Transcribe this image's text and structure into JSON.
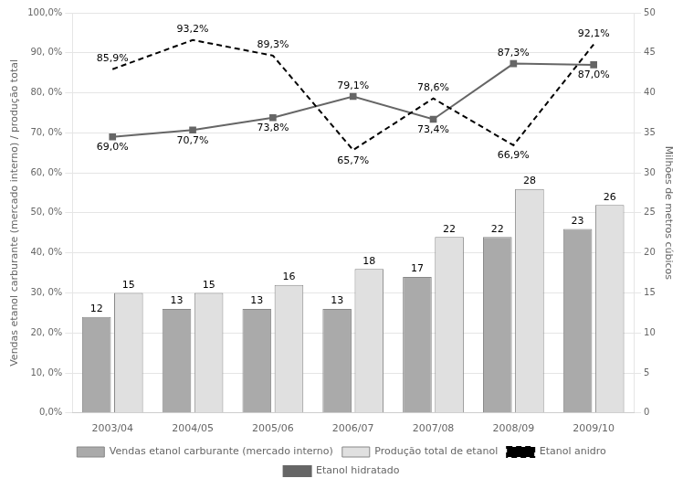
{
  "chart_data": {
    "type": "bar",
    "categories": [
      "2003/04",
      "2004/05",
      "2005/06",
      "2006/07",
      "2007/08",
      "2008/09",
      "2009/10"
    ],
    "series": [
      {
        "name": "Vendas etanol carburante (mercado interno)",
        "type": "bar",
        "axis": "y2",
        "color": "#aaaaaa",
        "values": [
          12,
          13,
          13,
          13,
          17,
          22,
          23
        ]
      },
      {
        "name": "Produção total de etanol",
        "type": "bar",
        "axis": "y2",
        "color": "#e0e0e0",
        "values": [
          15,
          15,
          16,
          18,
          22,
          28,
          26
        ]
      },
      {
        "name": "Etanol anidro",
        "type": "line",
        "color": "#000000",
        "line_style": "dashed",
        "marker": "none",
        "values": [
          85.9,
          93.2,
          89.3,
          65.7,
          78.6,
          66.9,
          92.1
        ],
        "value_labels": [
          "85,9%",
          "93,2%",
          "89,3%",
          "65,7%",
          "78,6%",
          "66,9%",
          "92,1%"
        ]
      },
      {
        "name": "Etanol hidratado",
        "type": "line",
        "color": "#666666",
        "line_style": "solid",
        "marker": "square",
        "values": [
          69.0,
          70.7,
          73.8,
          79.1,
          73.4,
          87.3,
          87.0
        ],
        "value_labels": [
          "69,0%",
          "70,7%",
          "73,8%",
          "79,1%",
          "73,4%",
          "87,3%",
          "87,0%"
        ]
      }
    ],
    "ylabel": "Vendas etanol carburante (mercado interno) / produção total",
    "y2label": "Milhões de metros cúbicos",
    "ylim": [
      0,
      100
    ],
    "yticks": [
      {
        "value": 0,
        "label": "0,0%"
      },
      {
        "value": 10,
        "label": "10, 0%"
      },
      {
        "value": 20,
        "label": "20, 0%"
      },
      {
        "value": 30,
        "label": "30, 0%"
      },
      {
        "value": 40,
        "label": "40, 0%"
      },
      {
        "value": 50,
        "label": "50, 0%"
      },
      {
        "value": 60,
        "label": "60, 0%"
      },
      {
        "value": 70,
        "label": "70, 0%"
      },
      {
        "value": 80,
        "label": "80, 0%"
      },
      {
        "value": 90,
        "label": "90, 0%"
      },
      {
        "value": 100,
        "label": "100,0%"
      }
    ],
    "y2lim": [
      0,
      50
    ],
    "y2ticks": [
      0,
      5,
      10,
      15,
      20,
      25,
      30,
      35,
      40,
      45,
      50
    ],
    "grid": true,
    "legend": "bottom",
    "data_labels": true
  }
}
